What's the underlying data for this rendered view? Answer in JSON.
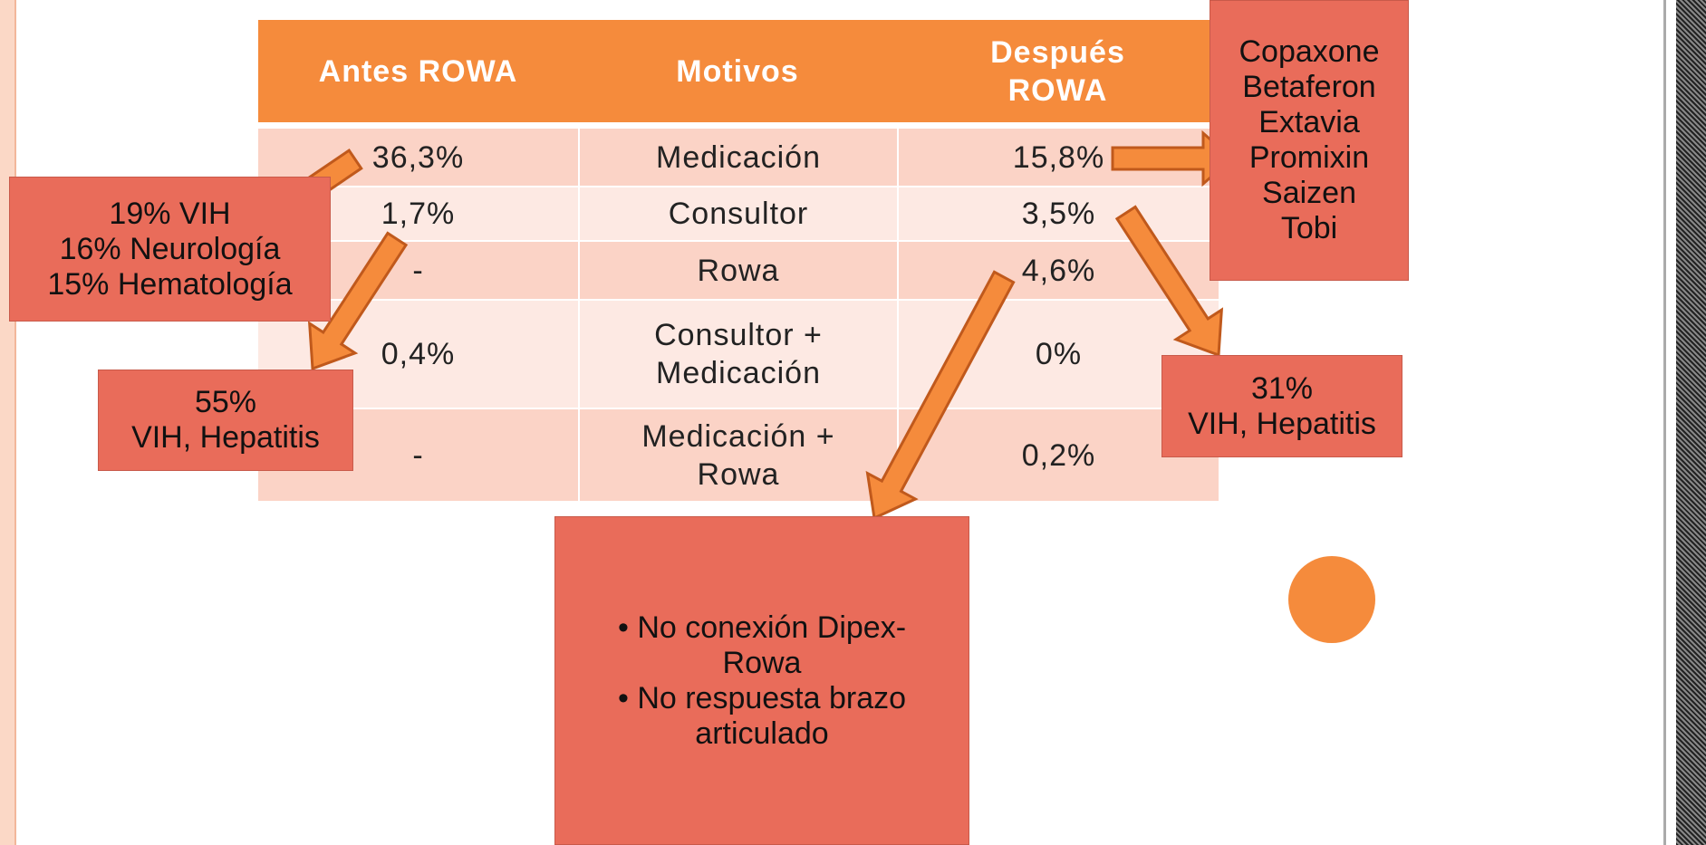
{
  "table": {
    "header": [
      "Antes ROWA",
      "Motivos",
      [
        "Después",
        "ROWA"
      ]
    ],
    "rows": [
      [
        "36,3%",
        "Medicación",
        "15,8%"
      ],
      [
        "1,7%",
        "Consultor",
        "3,5%"
      ],
      [
        "-",
        "Rowa",
        "4,6%"
      ],
      [
        "0,4%",
        [
          "Consultor +",
          "Medicación"
        ],
        "0%"
      ],
      [
        "-",
        [
          "Medicación +",
          "Rowa"
        ],
        "0,2%"
      ]
    ]
  },
  "callouts": {
    "drugs": [
      "Copaxone",
      "Betaferon",
      "Extavia",
      "Promixin",
      "Saizen",
      "Tobi"
    ],
    "services": [
      "19% VIH",
      "16% Neurología",
      "15% Hematología"
    ],
    "left_infection": [
      "55%",
      "VIH, Hepatitis"
    ],
    "right_infection": [
      "31%",
      "VIH, Hepatitis"
    ],
    "issues": [
      [
        "No conexión Dipex-",
        "Rowa"
      ],
      [
        "No respuesta brazo",
        "articulado"
      ]
    ]
  }
}
